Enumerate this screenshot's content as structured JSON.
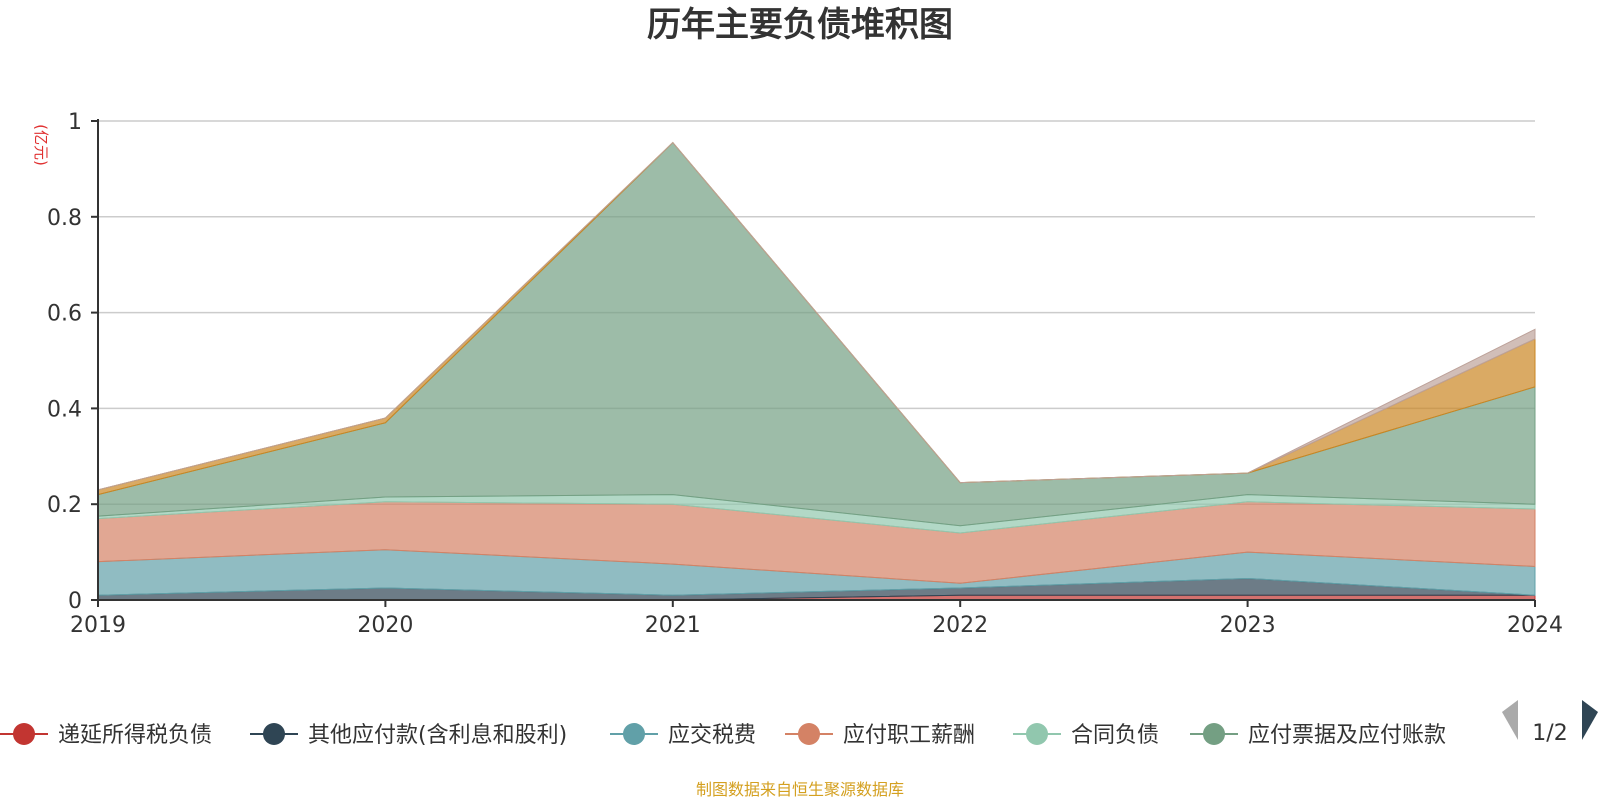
{
  "chart_data": {
    "type": "area",
    "stacked": true,
    "title": "历年主要负债堆积图",
    "y_unit": "(亿元)",
    "x": [
      "2019",
      "2020",
      "2021",
      "2022",
      "2023",
      "2024"
    ],
    "ylim": [
      0,
      1
    ],
    "yticks": [
      "0",
      "0.2",
      "0.4",
      "0.6",
      "0.8",
      "1"
    ],
    "grid": true,
    "series": [
      {
        "name": "递延所得税负债",
        "color": "#c23531",
        "values": [
          0.0,
          0.0,
          0.0,
          0.01,
          0.01,
          0.01
        ]
      },
      {
        "name": "其他应付款(含利息和股利)",
        "color": "#2f4554",
        "values": [
          0.01,
          0.025,
          0.01,
          0.015,
          0.035,
          0.0
        ]
      },
      {
        "name": "应交税费",
        "color": "#61a0a8",
        "values": [
          0.07,
          0.08,
          0.065,
          0.01,
          0.055,
          0.06
        ]
      },
      {
        "name": "应付职工薪酬",
        "color": "#d48265",
        "values": [
          0.09,
          0.1,
          0.125,
          0.105,
          0.105,
          0.12
        ]
      },
      {
        "name": "合同负债",
        "color": "#91c7ae",
        "values": [
          0.005,
          0.01,
          0.02,
          0.015,
          0.015,
          0.01
        ]
      },
      {
        "name": "应付票据及应付账款",
        "color": "#749f83",
        "values": [
          0.045,
          0.155,
          0.735,
          0.09,
          0.045,
          0.245
        ]
      },
      {
        "name": "",
        "color": "#ca8622",
        "values": [
          0.01,
          0.01,
          0.0,
          0.0,
          0.0,
          0.1
        ]
      },
      {
        "name": "",
        "color": "#bda29a",
        "values": [
          0.0,
          0.0,
          0.0,
          0.0,
          0.0,
          0.02
        ]
      }
    ],
    "legend": {
      "items": [
        "递延所得税负债",
        "其他应付款(含利息和股利)",
        "应交税费",
        "应付职工薪酬",
        "合同负债",
        "应付票据及应付账款"
      ],
      "page": "1/2"
    },
    "source": "制图数据来自恒生聚源数据库"
  }
}
